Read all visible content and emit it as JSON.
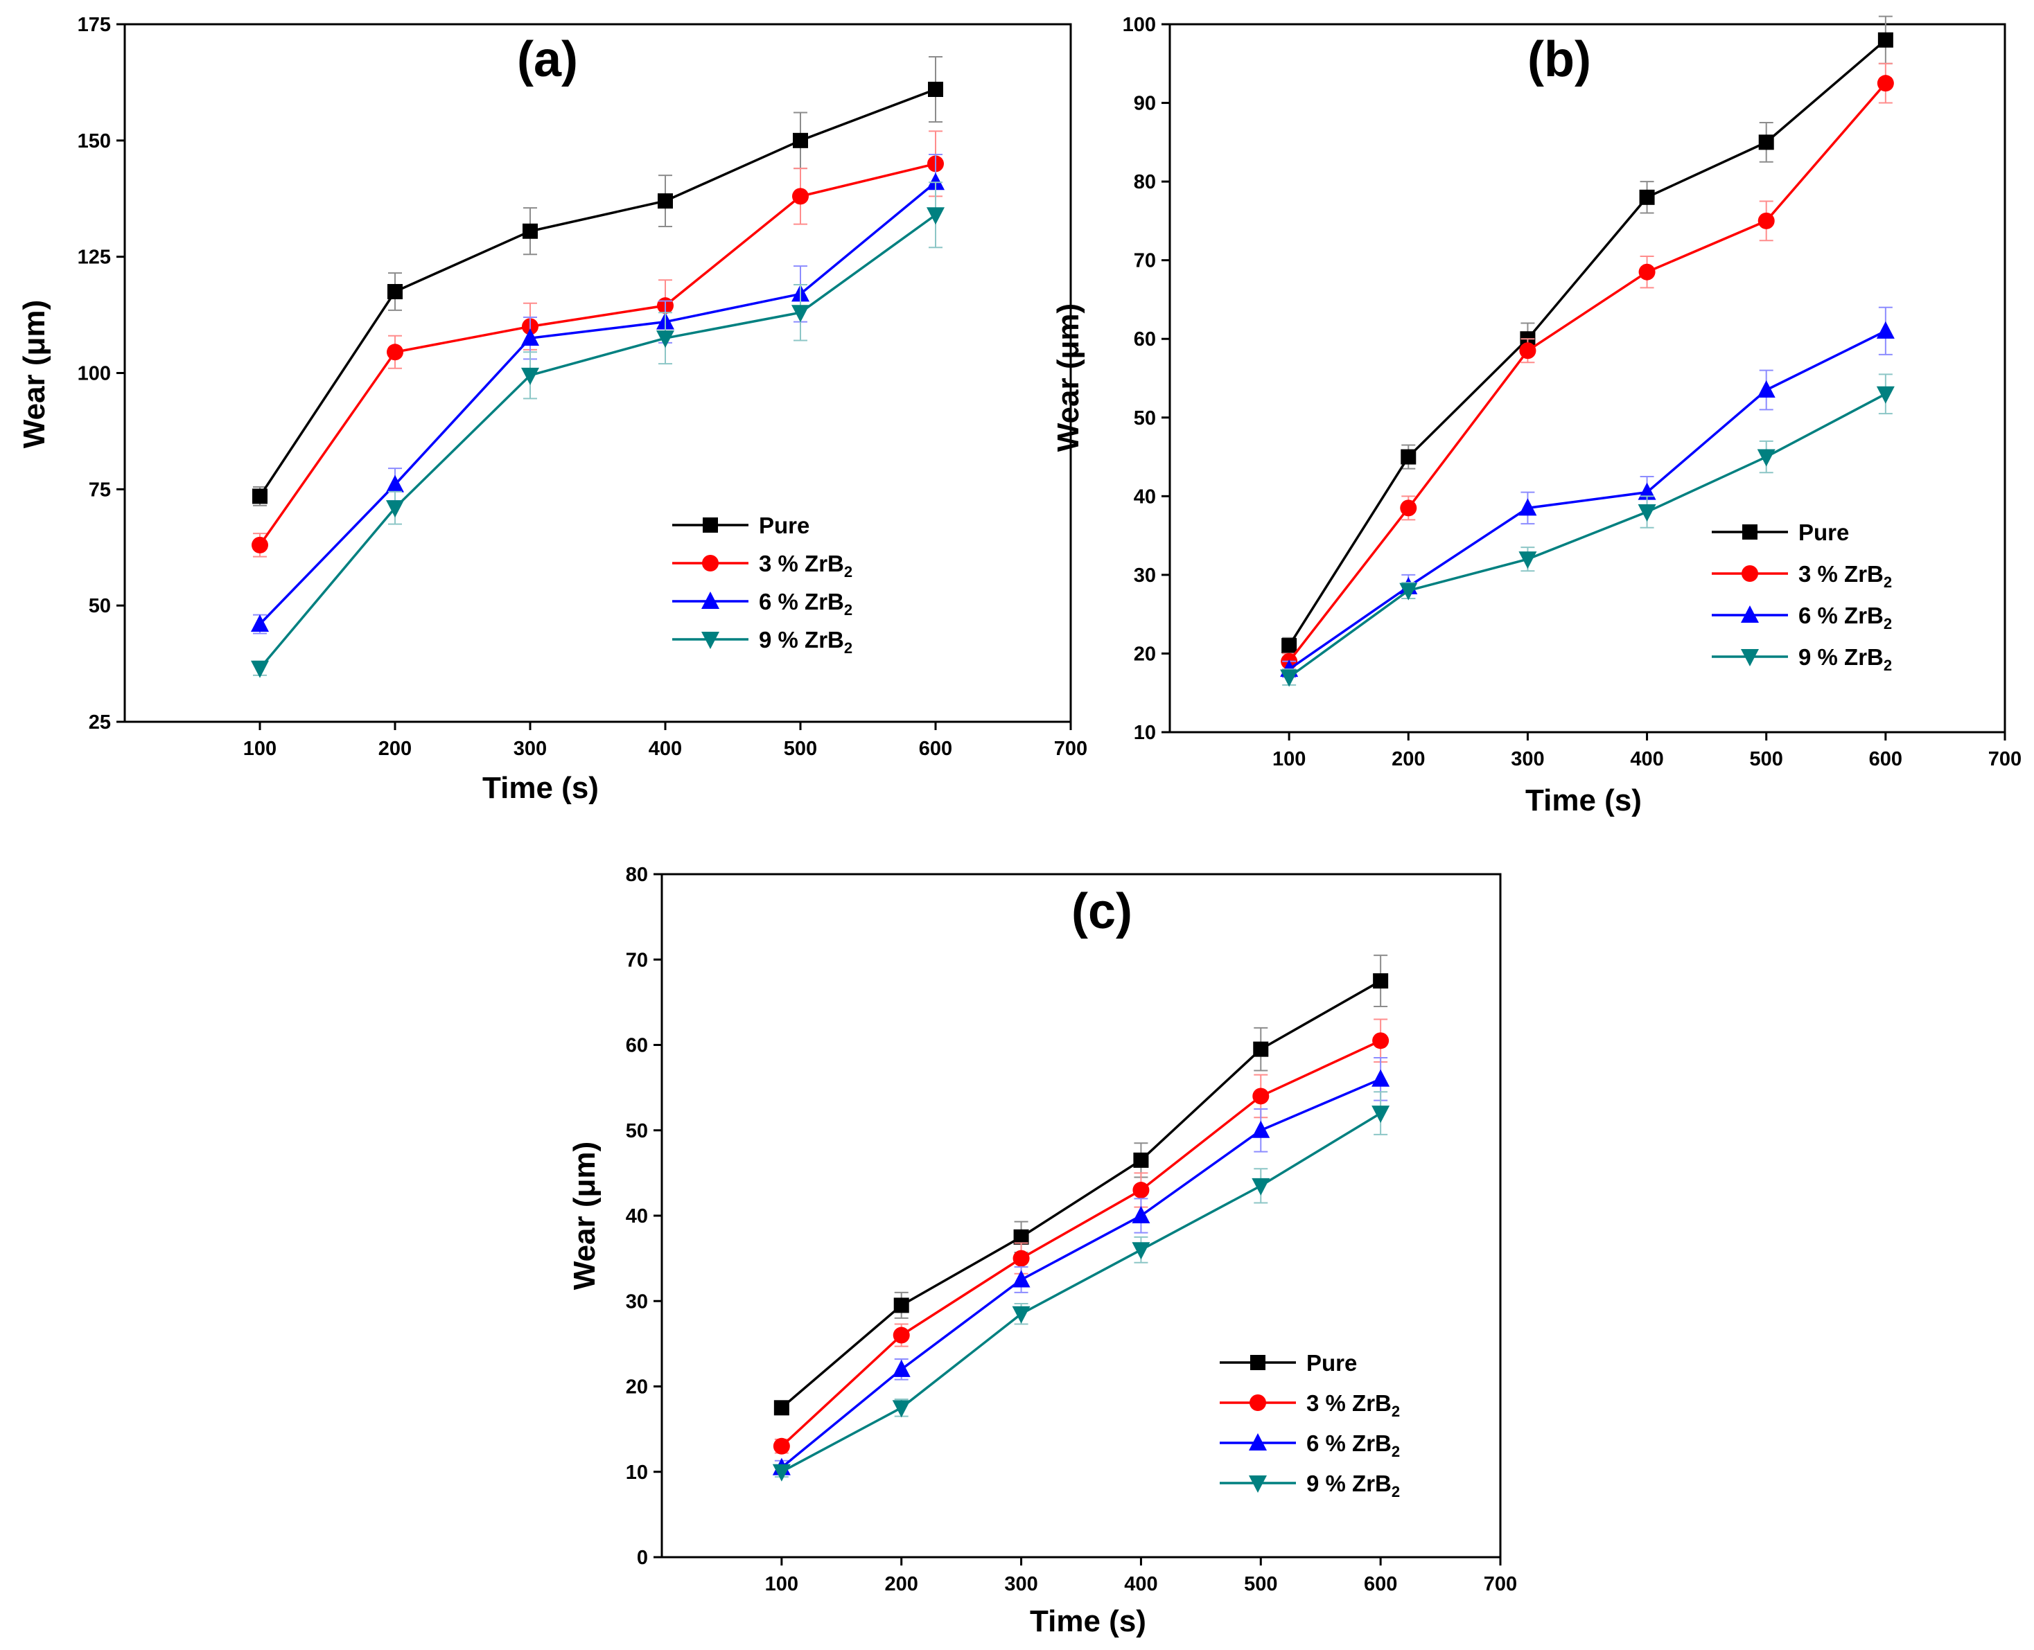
{
  "chart_data": [
    {
      "type": "line",
      "panel_label": "(a)",
      "xlabel": "Time (s)",
      "ylabel": "Wear (μm)",
      "xlim": [
        0,
        700
      ],
      "ylim": [
        25,
        175
      ],
      "xticks": [
        100,
        200,
        300,
        400,
        500,
        600,
        700
      ],
      "yticks": [
        25,
        50,
        75,
        100,
        125,
        150,
        175
      ],
      "x": [
        100,
        200,
        300,
        400,
        500,
        600
      ],
      "series": [
        {
          "name": "Pure",
          "legend_main": "Pure",
          "legend_sub": "",
          "color": "#000000",
          "marker": "square",
          "values": [
            73.5,
            117.5,
            130.5,
            137,
            150,
            161
          ],
          "errors": [
            2,
            4,
            5,
            5.5,
            6,
            7
          ]
        },
        {
          "name": "3 % ZrB2",
          "legend_main": "3 % ZrB",
          "legend_sub": "2",
          "color": "#ff0000",
          "marker": "circle",
          "values": [
            63,
            104.5,
            110,
            114.5,
            138,
            145
          ],
          "errors": [
            2.5,
            3.5,
            5,
            5.5,
            6,
            7
          ]
        },
        {
          "name": "6 % ZrB2",
          "legend_main": "6 % ZrB",
          "legend_sub": "2",
          "color": "#0000ff",
          "marker": "triangle-up",
          "values": [
            46,
            76,
            107.5,
            111,
            117,
            141
          ],
          "errors": [
            2,
            3.5,
            4.5,
            4.5,
            6,
            6
          ]
        },
        {
          "name": "9 % ZrB2",
          "legend_main": "9 % ZrB",
          "legend_sub": "2",
          "color": "#008080",
          "marker": "triangle-down",
          "values": [
            36.5,
            71,
            99.5,
            107.5,
            113,
            134
          ],
          "errors": [
            1.5,
            3.5,
            5,
            5.5,
            6,
            7
          ]
        }
      ]
    },
    {
      "type": "line",
      "panel_label": "(b)",
      "xlabel": "Time (s)",
      "ylabel": "Wear (μm)",
      "xlim": [
        0,
        700
      ],
      "ylim": [
        10,
        100
      ],
      "xticks": [
        100,
        200,
        300,
        400,
        500,
        600,
        700
      ],
      "yticks": [
        10,
        20,
        30,
        40,
        50,
        60,
        70,
        80,
        90,
        100
      ],
      "x": [
        100,
        200,
        300,
        400,
        500,
        600
      ],
      "series": [
        {
          "name": "Pure",
          "legend_main": "Pure",
          "legend_sub": "",
          "color": "#000000",
          "marker": "square",
          "values": [
            21,
            45,
            60,
            78,
            85,
            98
          ],
          "errors": [
            1,
            1.5,
            2,
            2,
            2.5,
            3
          ]
        },
        {
          "name": "3 % ZrB2",
          "legend_main": "3 % ZrB",
          "legend_sub": "2",
          "color": "#ff0000",
          "marker": "circle",
          "values": [
            19,
            38.5,
            58.5,
            68.5,
            75,
            92.5
          ],
          "errors": [
            1,
            1.5,
            1.5,
            2,
            2.5,
            2.5
          ]
        },
        {
          "name": "6 % ZrB2",
          "legend_main": "6 % ZrB",
          "legend_sub": "2",
          "color": "#0000ff",
          "marker": "triangle-up",
          "values": [
            18,
            28.5,
            38.5,
            40.5,
            53.5,
            61
          ],
          "errors": [
            1,
            1.5,
            2,
            2,
            2.5,
            3
          ]
        },
        {
          "name": "9 % ZrB2",
          "legend_main": "9 % ZrB",
          "legend_sub": "2",
          "color": "#008080",
          "marker": "triangle-down",
          "values": [
            17,
            28,
            32,
            38,
            45,
            53
          ],
          "errors": [
            1,
            1,
            1.5,
            2,
            2,
            2.5
          ]
        }
      ]
    },
    {
      "type": "line",
      "panel_label": "(c)",
      "xlabel": "Time (s)",
      "ylabel": "Wear (μm)",
      "xlim": [
        0,
        700
      ],
      "ylim": [
        0,
        80
      ],
      "xticks": [
        100,
        200,
        300,
        400,
        500,
        600,
        700
      ],
      "yticks": [
        0,
        10,
        20,
        30,
        40,
        50,
        60,
        70,
        80
      ],
      "x": [
        100,
        200,
        300,
        400,
        500,
        600
      ],
      "series": [
        {
          "name": "Pure",
          "legend_main": "Pure",
          "legend_sub": "",
          "color": "#000000",
          "marker": "square",
          "values": [
            17.5,
            29.5,
            37.5,
            46.5,
            59.5,
            67.5
          ],
          "errors": [
            0.8,
            1.5,
            1.8,
            2,
            2.5,
            3
          ]
        },
        {
          "name": "3 % ZrB2",
          "legend_main": "3 % ZrB",
          "legend_sub": "2",
          "color": "#ff0000",
          "marker": "circle",
          "values": [
            13,
            26,
            35,
            43,
            54,
            60.5
          ],
          "errors": [
            0.8,
            1.3,
            1.8,
            2,
            2.5,
            2.5
          ]
        },
        {
          "name": "6 % ZrB2",
          "legend_main": "6 % ZrB",
          "legend_sub": "2",
          "color": "#0000ff",
          "marker": "triangle-up",
          "values": [
            10.5,
            22,
            32.5,
            40,
            50,
            56
          ],
          "errors": [
            0.8,
            1.2,
            1.5,
            2,
            2.5,
            2.5
          ]
        },
        {
          "name": "9 % ZrB2",
          "legend_main": "9 % ZrB",
          "legend_sub": "2",
          "color": "#008080",
          "marker": "triangle-down",
          "values": [
            10,
            17.5,
            28.5,
            36,
            43.5,
            52
          ],
          "errors": [
            0.6,
            1,
            1.2,
            1.5,
            2,
            2.5
          ]
        }
      ]
    }
  ]
}
